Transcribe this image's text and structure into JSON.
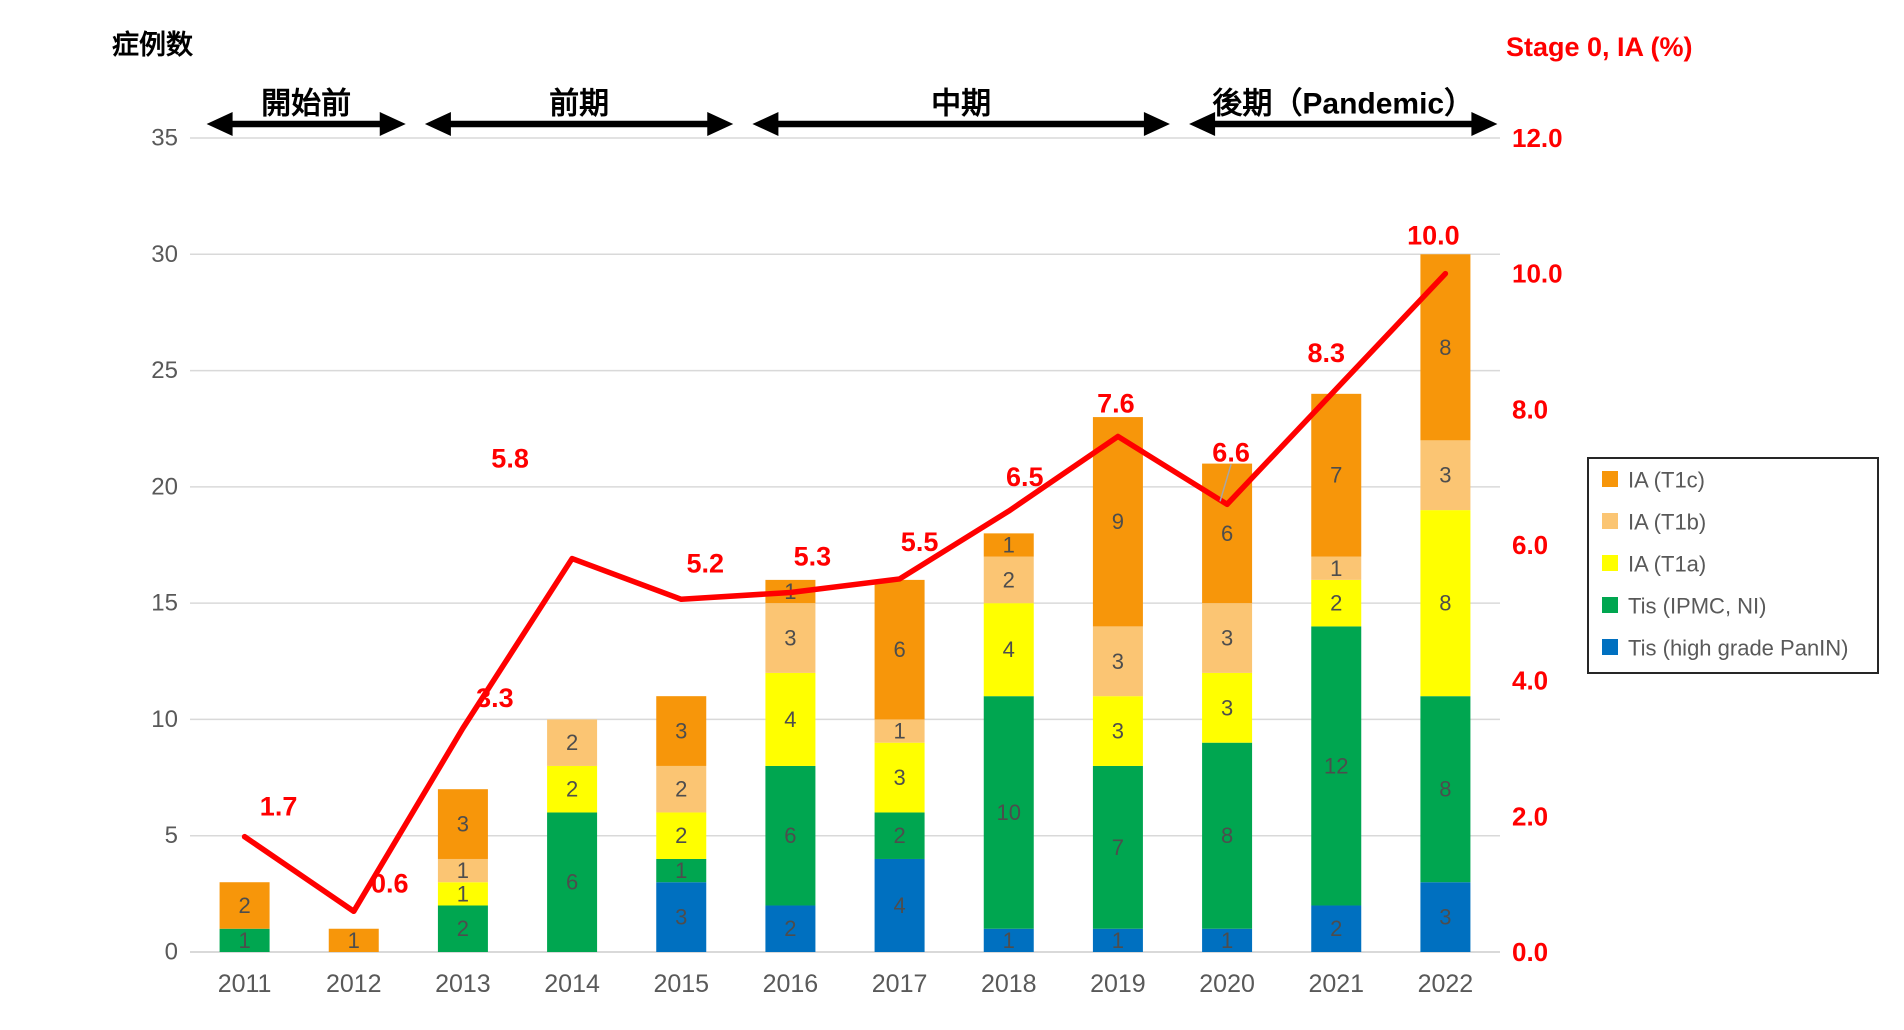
{
  "chart_data": {
    "type": "bar",
    "subtype": "stacked-column-with-line-combo",
    "categories": [
      "2011",
      "2012",
      "2013",
      "2014",
      "2015",
      "2016",
      "2017",
      "2018",
      "2019",
      "2020",
      "2021",
      "2022"
    ],
    "left_axis": {
      "title": "症例数",
      "min": 0,
      "max": 35,
      "tick_step": 5,
      "ticks": [
        "0",
        "5",
        "10",
        "15",
        "20",
        "25",
        "30",
        "35"
      ],
      "tick_color": "#595959"
    },
    "right_axis": {
      "title": "Stage 0, IA (%)",
      "min": 0,
      "max": 12,
      "tick_step": 2,
      "ticks": [
        "0.0",
        "2.0",
        "4.0",
        "6.0",
        "8.0",
        "10.0",
        "12.0"
      ],
      "tick_color": "#FF0000"
    },
    "grid": "on",
    "grid_color": "#D9D9D9",
    "legend_position": "right",
    "series": [
      {
        "name": "Tis (high grade PanIN)",
        "color": "#0070C0",
        "values": [
          0,
          0,
          0,
          0,
          3,
          2,
          4,
          1,
          1,
          1,
          2,
          3
        ]
      },
      {
        "name": "Tis (IPMC, NI)",
        "color": "#00A650",
        "values": [
          1,
          0,
          2,
          6,
          1,
          6,
          2,
          10,
          7,
          8,
          12,
          8
        ]
      },
      {
        "name": "IA (T1a)",
        "color": "#FFFF00",
        "values": [
          0,
          0,
          1,
          2,
          2,
          4,
          3,
          4,
          3,
          3,
          2,
          8
        ]
      },
      {
        "name": "IA (T1b)",
        "color": "#FBC573",
        "values": [
          0,
          0,
          1,
          2,
          2,
          3,
          1,
          2,
          3,
          3,
          1,
          3
        ]
      },
      {
        "name": "IA (T1c)",
        "color": "#F7960A",
        "values": [
          2,
          1,
          3,
          0,
          3,
          1,
          6,
          1,
          9,
          6,
          7,
          8
        ]
      }
    ],
    "bar_totals": [
      3,
      1,
      7,
      10,
      11,
      16,
      16,
      18,
      23,
      21,
      24,
      30
    ],
    "segment_label_color": "#4D4D4D",
    "line_series": {
      "name": "Stage 0, IA (%)",
      "axis": "right",
      "color": "#FF0000",
      "values": [
        1.7,
        0.6,
        3.3,
        5.8,
        5.2,
        5.3,
        5.5,
        6.5,
        7.6,
        6.6,
        8.3,
        10.0
      ],
      "labels": [
        "1.7",
        "0.6",
        "3.3",
        "5.8",
        "5.2",
        "5.3",
        "5.5",
        "6.5",
        "7.6",
        "6.6",
        "8.3",
        "10.0"
      ]
    },
    "periods": [
      {
        "label": "開始前",
        "from": "2011",
        "to": "2012"
      },
      {
        "label": "前期",
        "from": "2013",
        "to": "2015"
      },
      {
        "label": "中期",
        "from": "2016",
        "to": "2019"
      },
      {
        "label": "後期（Pandemic）",
        "from": "2020",
        "to": "2022"
      }
    ],
    "legend": [
      "IA (T1c)",
      "IA (T1b)",
      "IA (T1a)",
      "Tis (IPMC, NI)",
      "Tis (high grade PanIN)"
    ]
  }
}
